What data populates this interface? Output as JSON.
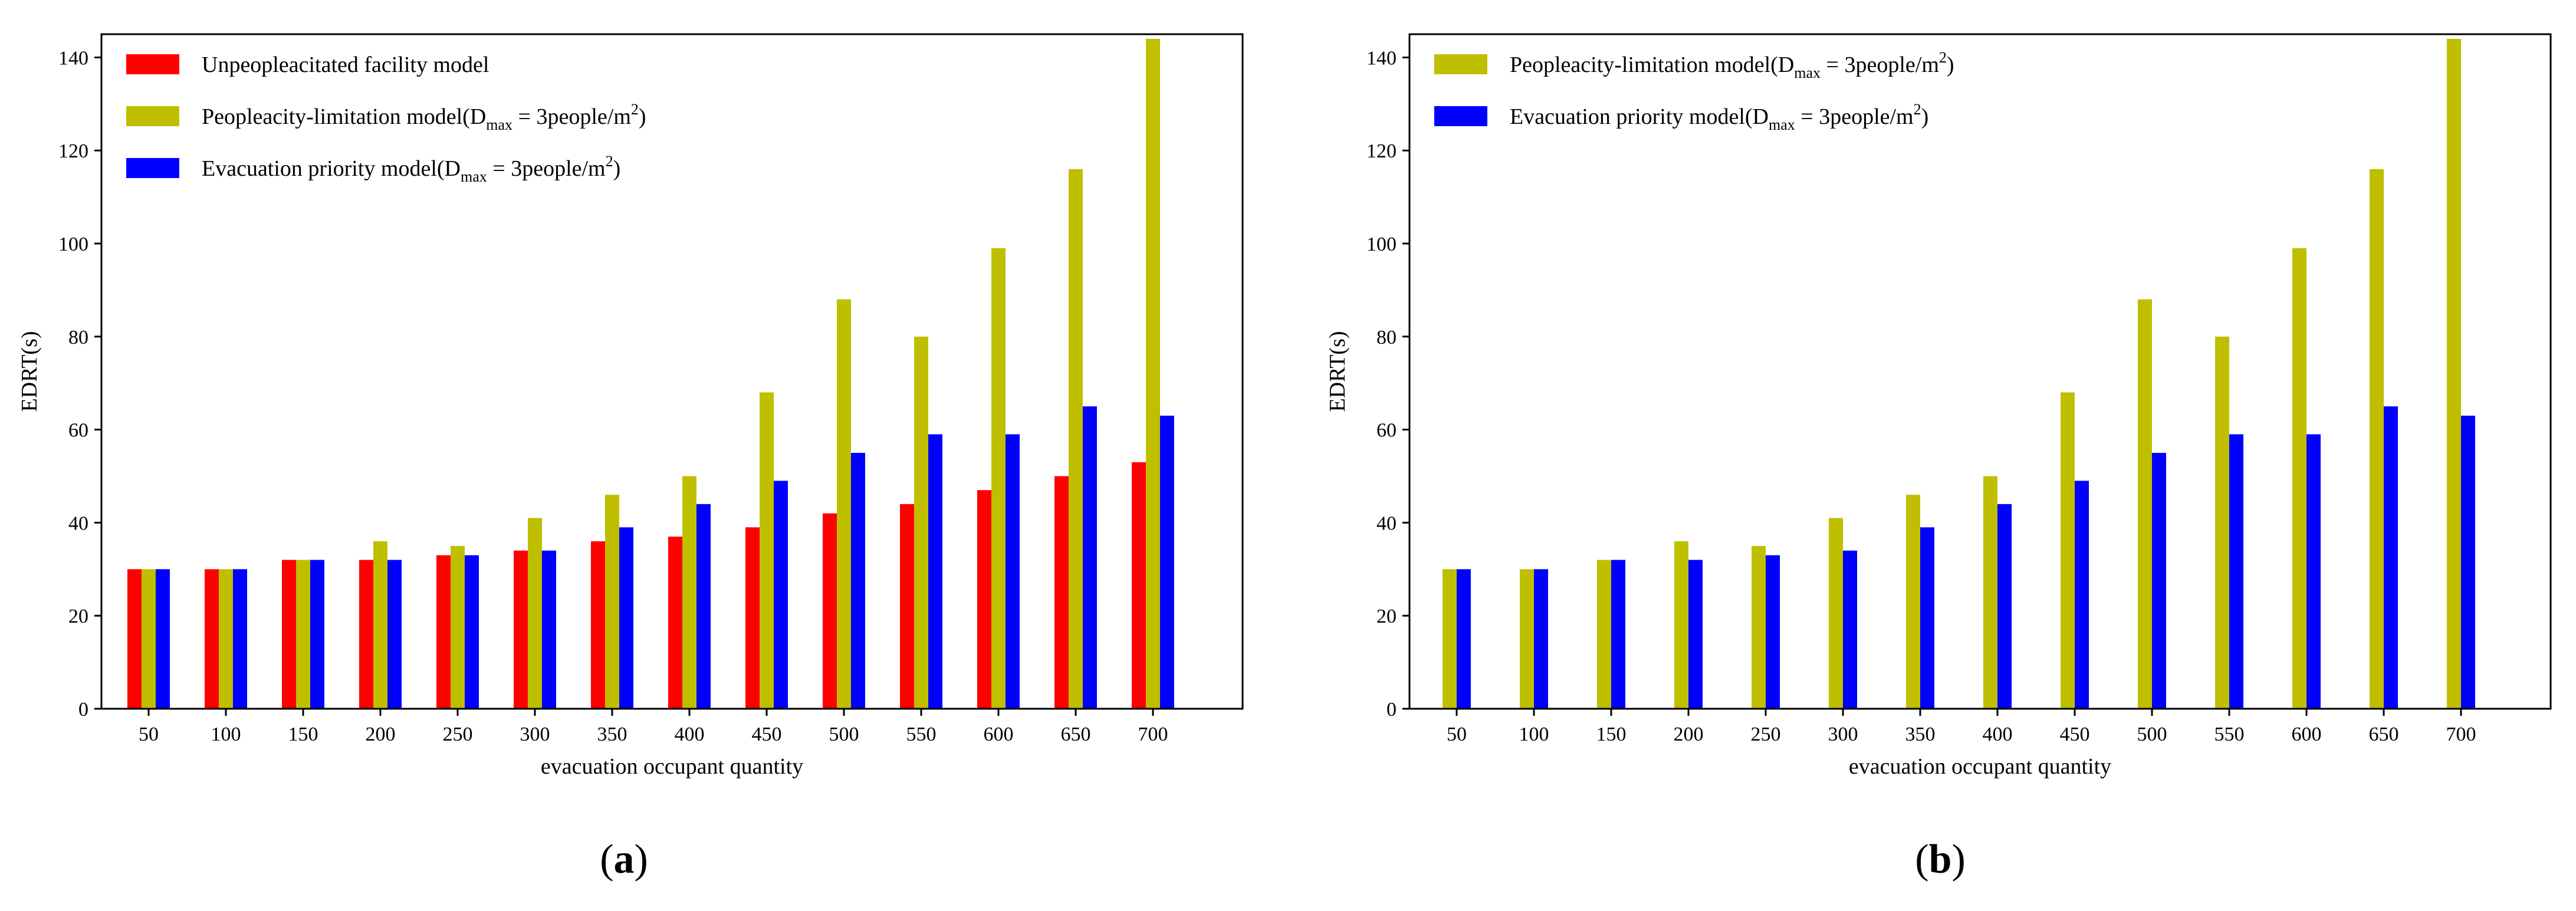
{
  "chart_data": [
    {
      "type": "bar",
      "panel_label": "a",
      "xlabel": "evacuation occupant quantity",
      "ylabel": "EDRT(s)",
      "ylim": [
        0,
        145
      ],
      "yticks": [
        0,
        20,
        40,
        60,
        80,
        100,
        120,
        140
      ],
      "categories": [
        "50",
        "100",
        "150",
        "200",
        "250",
        "300",
        "350",
        "400",
        "450",
        "500",
        "550",
        "600",
        "650",
        "700"
      ],
      "legend_position": "top-left",
      "series": [
        {
          "name": "Unpeopleacitated facility model",
          "legend_parts": [
            "Unpeopleacitated facility model"
          ],
          "color": "#ff0000",
          "values": [
            30,
            30,
            32,
            32,
            33,
            34,
            36,
            37,
            39,
            42,
            44,
            47,
            50,
            53
          ]
        },
        {
          "name": "Peopleacity-limitation model(Dmax = 3people/m2)",
          "legend_parts": [
            "Peopleacity-limitation model(D",
            "max",
            " = 3people/m",
            "2",
            ")"
          ],
          "color": "#bfbf00",
          "values": [
            30,
            30,
            32,
            36,
            35,
            41,
            46,
            50,
            68,
            88,
            80,
            99,
            116,
            144
          ]
        },
        {
          "name": "Evacuation priority model(Dmax = 3people/m2)",
          "legend_parts": [
            "Evacuation priority model(D",
            "max",
            " = 3people/m",
            "2",
            ")"
          ],
          "color": "#0000ff",
          "values": [
            30,
            30,
            32,
            32,
            33,
            34,
            39,
            44,
            49,
            55,
            59,
            59,
            65,
            63
          ]
        }
      ]
    },
    {
      "type": "bar",
      "panel_label": "b",
      "xlabel": "evacuation occupant quantity",
      "ylabel": "EDRT(s)",
      "ylim": [
        0,
        145
      ],
      "yticks": [
        0,
        20,
        40,
        60,
        80,
        100,
        120,
        140
      ],
      "categories": [
        "50",
        "100",
        "150",
        "200",
        "250",
        "300",
        "350",
        "400",
        "450",
        "500",
        "550",
        "600",
        "650",
        "700"
      ],
      "legend_position": "top-left",
      "series": [
        {
          "name": "Peopleacity-limitation model(Dmax = 3people/m2)",
          "legend_parts": [
            "Peopleacity-limitation model(D",
            "max",
            " = 3people/m",
            "2",
            ")"
          ],
          "color": "#bfbf00",
          "values": [
            30,
            30,
            32,
            36,
            35,
            41,
            46,
            50,
            68,
            88,
            80,
            99,
            116,
            144
          ]
        },
        {
          "name": "Evacuation priority model(Dmax = 3people/m2)",
          "legend_parts": [
            "Evacuation priority model(D",
            "max",
            " = 3people/m",
            "2",
            ")"
          ],
          "color": "#0000ff",
          "values": [
            30,
            30,
            32,
            32,
            33,
            34,
            39,
            44,
            49,
            55,
            59,
            59,
            65,
            63
          ]
        }
      ]
    }
  ]
}
